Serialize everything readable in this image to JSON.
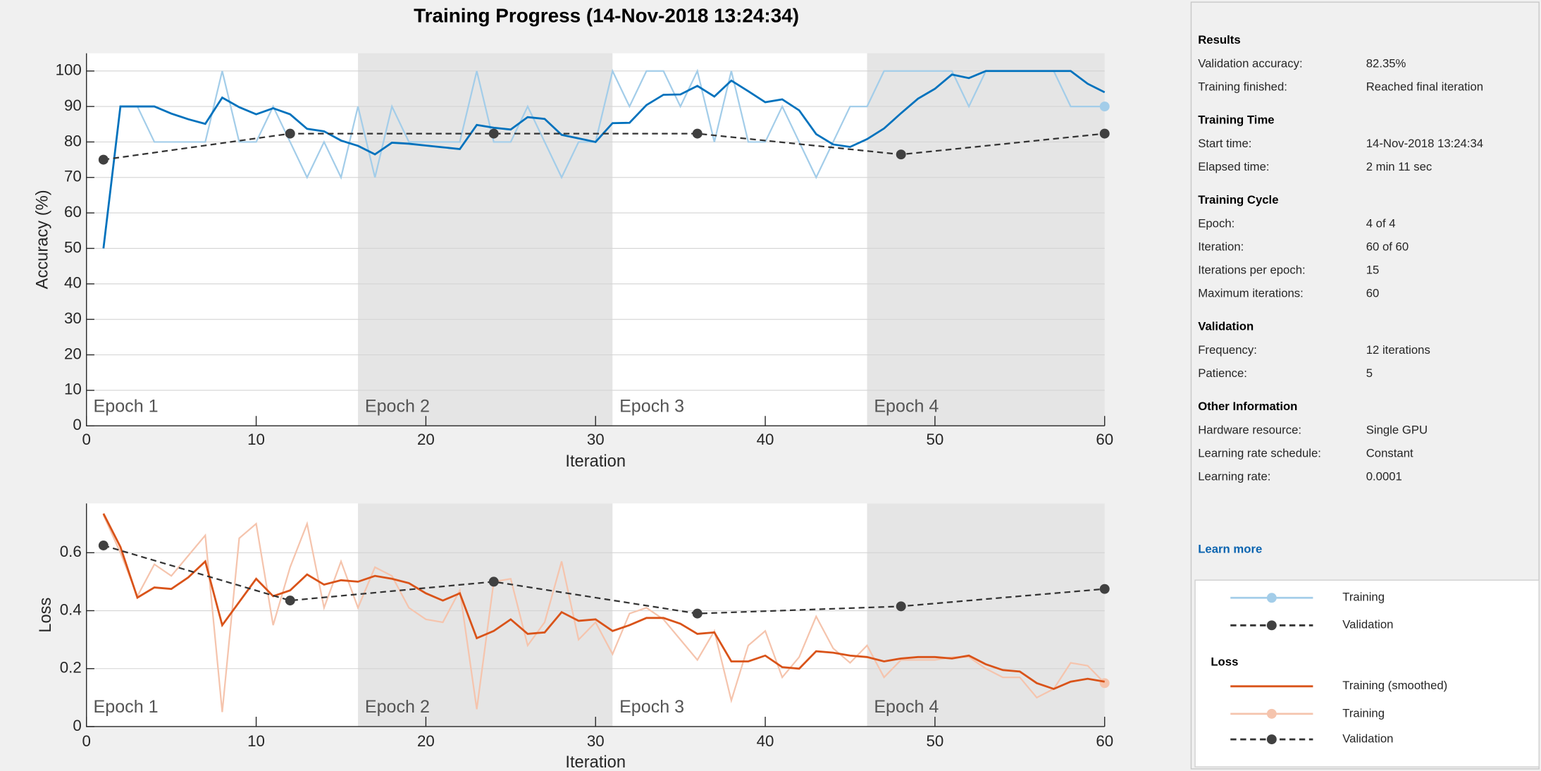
{
  "title": "Training Progress (14-Nov-2018 13:24:34)",
  "chart_data": [
    {
      "type": "line",
      "ylabel": "Accuracy (%)",
      "xlabel": "Iteration",
      "xlim": [
        0,
        60
      ],
      "ylim": [
        0,
        105
      ],
      "xticks": [
        0,
        10,
        20,
        30,
        40,
        50,
        60
      ],
      "yticks": [
        0,
        10,
        20,
        30,
        40,
        50,
        60,
        70,
        80,
        90,
        100
      ],
      "grid": true,
      "epochs": [
        {
          "label": "Epoch 1",
          "start": 0,
          "end": 16,
          "color": "#ffffff"
        },
        {
          "label": "Epoch 2",
          "start": 16,
          "end": 31,
          "color": "#e5e5e5"
        },
        {
          "label": "Epoch 3",
          "start": 31,
          "end": 46,
          "color": "#ffffff"
        },
        {
          "label": "Epoch 4",
          "start": 46,
          "end": 60,
          "color": "#e5e5e5"
        }
      ],
      "x": [
        1,
        2,
        3,
        4,
        5,
        6,
        7,
        8,
        9,
        10,
        11,
        12,
        13,
        14,
        15,
        16,
        17,
        18,
        19,
        20,
        21,
        22,
        23,
        24,
        25,
        26,
        27,
        28,
        29,
        30,
        31,
        32,
        33,
        34,
        35,
        36,
        37,
        38,
        39,
        40,
        41,
        42,
        43,
        44,
        45,
        46,
        47,
        48,
        49,
        50,
        51,
        52,
        53,
        54,
        55,
        56,
        57,
        58,
        59,
        60
      ],
      "series": [
        {
          "name": "Training (smoothed)",
          "color": "#0072bd",
          "values": [
            50,
            90,
            90,
            90,
            88,
            86.4,
            85.1,
            92.5,
            89.8,
            87.8,
            89.5,
            87.8,
            83.7,
            83,
            80.4,
            78.9,
            76.5,
            79.8,
            79.5,
            79,
            78.5,
            78,
            84.8,
            84,
            83.5,
            87,
            86.5,
            82,
            81,
            80,
            85.3,
            85.4,
            90.4,
            93.3,
            93.4,
            95.8,
            92.8,
            97.3,
            94.3,
            91.2,
            92,
            88.9,
            82.2,
            79.3,
            78.6,
            80.8,
            83.8,
            88.1,
            92.2,
            95,
            99,
            98,
            100,
            100,
            100,
            100,
            100,
            100,
            96.4,
            94
          ]
        },
        {
          "name": "Training",
          "color": "#a3cde9",
          "end_marker": true,
          "values": [
            50,
            90,
            90,
            80,
            80,
            80,
            80,
            100,
            80,
            80,
            90,
            80,
            70,
            80,
            70,
            90,
            70,
            90,
            80,
            80,
            80,
            80,
            100,
            80,
            80,
            90,
            80,
            70,
            80,
            80,
            100,
            90,
            100,
            100,
            90,
            100,
            80,
            100,
            80,
            80,
            90,
            80,
            70,
            80,
            90,
            90,
            100,
            100,
            100,
            100,
            100,
            90,
            100,
            100,
            100,
            100,
            100,
            90,
            90,
            90
          ]
        },
        {
          "name": "Validation",
          "color": "#333333",
          "line_style": "dashed",
          "markers": true,
          "x": [
            1,
            12,
            24,
            36,
            48,
            60
          ],
          "values": [
            75,
            82.35,
            82.35,
            82.35,
            76.47,
            82.35
          ]
        }
      ]
    },
    {
      "type": "line",
      "ylabel": "Loss",
      "xlabel": "Iteration",
      "legend_title": "Loss",
      "xlim": [
        0,
        60
      ],
      "ylim": [
        0,
        0.77
      ],
      "xticks": [
        0,
        10,
        20,
        30,
        40,
        50,
        60
      ],
      "yticks": [
        0,
        0.2,
        0.4,
        0.6
      ],
      "grid": true,
      "epochs": [
        {
          "label": "Epoch 1",
          "start": 0,
          "end": 16,
          "color": "#ffffff"
        },
        {
          "label": "Epoch 2",
          "start": 16,
          "end": 31,
          "color": "#e5e5e5"
        },
        {
          "label": "Epoch 3",
          "start": 31,
          "end": 46,
          "color": "#ffffff"
        },
        {
          "label": "Epoch 4",
          "start": 46,
          "end": 60,
          "color": "#e5e5e5"
        }
      ],
      "x": [
        1,
        2,
        3,
        4,
        5,
        6,
        7,
        8,
        9,
        10,
        11,
        12,
        13,
        14,
        15,
        16,
        17,
        18,
        19,
        20,
        21,
        22,
        23,
        24,
        25,
        26,
        27,
        28,
        29,
        30,
        31,
        32,
        33,
        34,
        35,
        36,
        37,
        38,
        39,
        40,
        41,
        42,
        43,
        44,
        45,
        46,
        47,
        48,
        49,
        50,
        51,
        52,
        53,
        54,
        55,
        56,
        57,
        58,
        59,
        60
      ],
      "series": [
        {
          "name": "Training (smoothed)",
          "color": "#d95319",
          "values": [
            0.735,
            0.62,
            0.445,
            0.48,
            0.475,
            0.515,
            0.57,
            0.35,
            0.43,
            0.51,
            0.45,
            0.47,
            0.525,
            0.49,
            0.505,
            0.5,
            0.52,
            0.51,
            0.495,
            0.46,
            0.435,
            0.46,
            0.305,
            0.33,
            0.37,
            0.32,
            0.325,
            0.395,
            0.365,
            0.37,
            0.33,
            0.35,
            0.375,
            0.375,
            0.355,
            0.32,
            0.325,
            0.225,
            0.225,
            0.245,
            0.205,
            0.2,
            0.26,
            0.255,
            0.245,
            0.24,
            0.225,
            0.235,
            0.24,
            0.24,
            0.235,
            0.245,
            0.215,
            0.195,
            0.19,
            0.15,
            0.13,
            0.155,
            0.165,
            0.155
          ]
        },
        {
          "name": "Training",
          "color": "#f5c4ad",
          "end_marker": true,
          "values": [
            0.73,
            0.6,
            0.45,
            0.56,
            0.52,
            0.59,
            0.66,
            0.05,
            0.65,
            0.7,
            0.35,
            0.55,
            0.7,
            0.41,
            0.57,
            0.41,
            0.55,
            0.52,
            0.41,
            0.37,
            0.36,
            0.47,
            0.06,
            0.5,
            0.51,
            0.28,
            0.36,
            0.57,
            0.3,
            0.36,
            0.25,
            0.39,
            0.41,
            0.37,
            0.3,
            0.23,
            0.33,
            0.09,
            0.28,
            0.33,
            0.17,
            0.24,
            0.38,
            0.27,
            0.22,
            0.28,
            0.17,
            0.23,
            0.23,
            0.23,
            0.24,
            0.24,
            0.2,
            0.17,
            0.17,
            0.1,
            0.13,
            0.22,
            0.21,
            0.15
          ]
        },
        {
          "name": "Validation",
          "color": "#333333",
          "line_style": "dashed",
          "markers": true,
          "x": [
            1,
            12,
            24,
            36,
            48,
            60
          ],
          "values": [
            0.625,
            0.435,
            0.5,
            0.39,
            0.415,
            0.475
          ]
        }
      ]
    }
  ],
  "panel": {
    "sections": [
      {
        "heading": "Results",
        "rows": [
          [
            "Validation accuracy:",
            "82.35%"
          ],
          [
            "Training finished:",
            "Reached final iteration"
          ]
        ]
      },
      {
        "heading": "Training Time",
        "rows": [
          [
            "Start time:",
            "14-Nov-2018 13:24:34"
          ],
          [
            "Elapsed time:",
            "2 min 11 sec"
          ]
        ]
      },
      {
        "heading": "Training Cycle",
        "rows": [
          [
            "Epoch:",
            "4 of 4"
          ],
          [
            "Iteration:",
            "60 of 60"
          ],
          [
            "Iterations per epoch:",
            "15"
          ],
          [
            "Maximum iterations:",
            "60"
          ]
        ]
      },
      {
        "heading": "Validation",
        "rows": [
          [
            "Frequency:",
            "12 iterations"
          ],
          [
            "Patience:",
            "5"
          ]
        ]
      },
      {
        "heading": "Other Information",
        "rows": [
          [
            "Hardware resource:",
            "Single GPU"
          ],
          [
            "Learning rate schedule:",
            "Constant"
          ],
          [
            "Learning rate:",
            "0.0001"
          ]
        ]
      }
    ],
    "link": "Learn more"
  }
}
